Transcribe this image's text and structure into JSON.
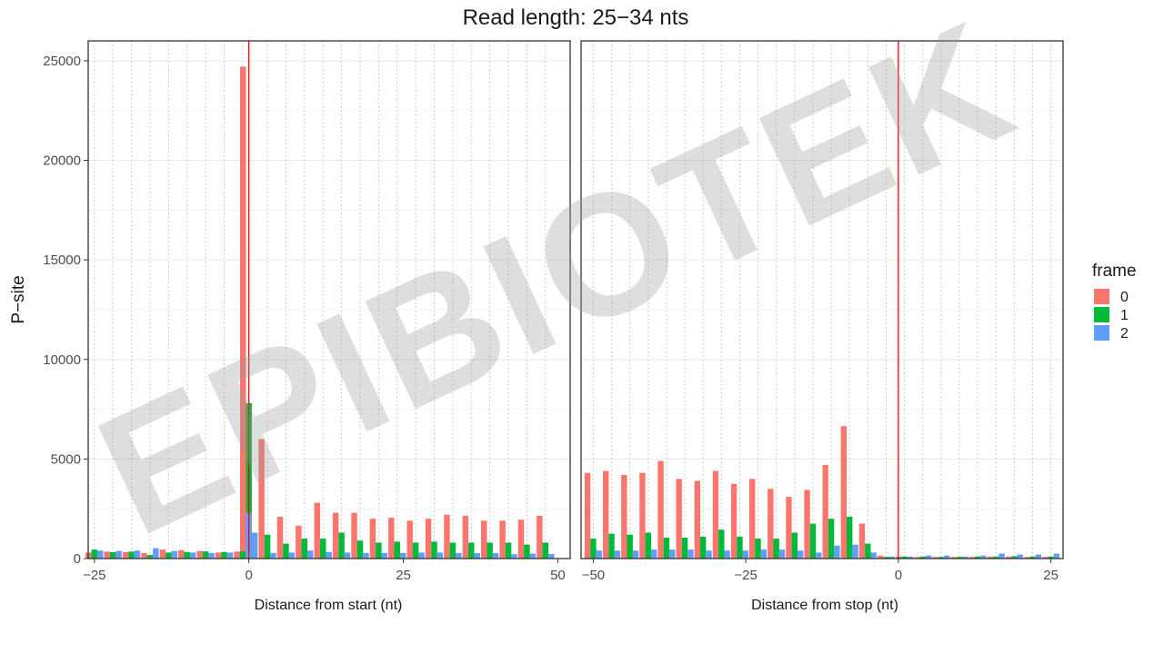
{
  "chart_data": {
    "type": "bar",
    "title": "Read length: 25−34 nts",
    "ylabel": "P−site",
    "ylim": [
      0,
      26000
    ],
    "yticks": [
      0,
      5000,
      10000,
      15000,
      20000,
      25000
    ],
    "grid": true,
    "legend": {
      "title": "frame",
      "position": "right",
      "entries": [
        "0",
        "1",
        "2"
      ]
    },
    "colors": {
      "frame0": "#F8766D",
      "frame1": "#00BA38",
      "frame2": "#619CFF",
      "marker": "#FF0000"
    },
    "watermark": "EPIBIOTEK",
    "panels": [
      {
        "xlabel": "Distance from start (nt)",
        "xlim": [
          -26,
          52
        ],
        "xticks": [
          -25,
          0,
          25,
          50
        ],
        "xtick_labels": [
          "−25",
          "0",
          "25",
          "50"
        ],
        "marker_x": 0,
        "x": [
          -25,
          -22,
          -19,
          -16,
          -13,
          -10,
          -7,
          -4,
          -1,
          0,
          3,
          6,
          9,
          12,
          15,
          18,
          21,
          24,
          27,
          30,
          33,
          36,
          39,
          42,
          45,
          48
        ],
        "series": [
          {
            "name": "0",
            "values": [
              300,
              350,
              330,
              280,
              450,
              420,
              380,
              300,
              350,
              24700,
              6000,
              2100,
              1650,
              2800,
              2300,
              2300,
              2000,
              2050,
              1900,
              2000,
              2200,
              2150,
              1900,
              1900,
              1950,
              2150
            ]
          },
          {
            "name": "1",
            "values": [
              450,
              320,
              350,
              180,
              300,
              330,
              360,
              330,
              360,
              7800,
              1200,
              750,
              1000,
              1000,
              1300,
              900,
              800,
              850,
              800,
              850,
              800,
              800,
              800,
              800,
              700,
              800
            ]
          },
          {
            "name": "2",
            "values": [
              400,
              380,
              400,
              520,
              380,
              300,
              280,
              300,
              2300,
              1300,
              280,
              300,
              400,
              330,
              300,
              280,
              280,
              280,
              300,
              300,
              280,
              270,
              270,
              220,
              250,
              230
            ]
          }
        ]
      },
      {
        "xlabel": "Distance from stop (nt)",
        "xlim": [
          -52,
          27
        ],
        "xticks": [
          -50,
          -25,
          0,
          25
        ],
        "xtick_labels": [
          "−50",
          "−25",
          "0",
          "25"
        ],
        "marker_x": 0,
        "x": [
          -50,
          -47,
          -44,
          -41,
          -38,
          -35,
          -32,
          -29,
          -26,
          -23,
          -20,
          -17,
          -14,
          -11,
          -8,
          -5,
          -2,
          1,
          4,
          7,
          10,
          13,
          16,
          19,
          22,
          25
        ],
        "series": [
          {
            "name": "0",
            "values": [
              4300,
              4400,
              4200,
              4300,
              4900,
              4000,
              3900,
              4400,
              3750,
              4000,
              3500,
              3100,
              3450,
              4700,
              6650,
              1750,
              150,
              100,
              80,
              80,
              80,
              80,
              100,
              100,
              80,
              80
            ]
          },
          {
            "name": "1",
            "values": [
              1000,
              1250,
              1200,
              1300,
              1050,
              1050,
              1100,
              1450,
              1100,
              1000,
              1000,
              1300,
              1750,
              2000,
              2100,
              750,
              80,
              100,
              100,
              80,
              80,
              100,
              100,
              120,
              100,
              100
            ]
          },
          {
            "name": "2",
            "values": [
              400,
              400,
              400,
              450,
              450,
              450,
              400,
              400,
              400,
              450,
              450,
              400,
              300,
              650,
              700,
              300,
              100,
              100,
              150,
              150,
              100,
              150,
              250,
              200,
              200,
              250
            ]
          }
        ]
      }
    ]
  }
}
